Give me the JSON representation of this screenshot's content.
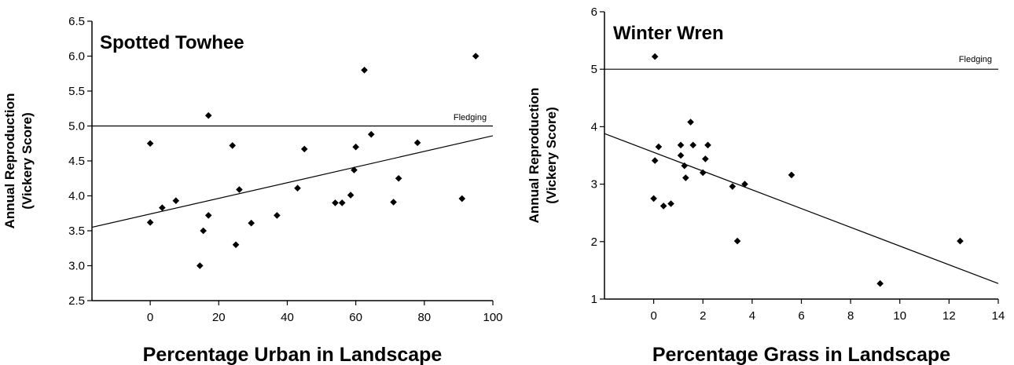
{
  "chart_data": [
    {
      "type": "scatter",
      "title": "Spotted Towhee",
      "xlabel": "Percentage Urban in Landscape",
      "ylabel": [
        "Annual Reproduction",
        "(Vickery Score)"
      ],
      "xlim": [
        -17,
        100
      ],
      "ylim": [
        2.5,
        6.5
      ],
      "xticks": [
        0,
        20,
        40,
        60,
        80,
        100
      ],
      "yticks": [
        "2.5",
        "3.0",
        "3.5",
        "4.0",
        "4.5",
        "5.0",
        "5.5",
        "6.0",
        "6.5"
      ],
      "x": [
        0,
        0,
        3.5,
        7.5,
        14.5,
        15.5,
        17,
        17,
        24,
        25,
        26,
        29.5,
        37,
        43,
        45,
        54,
        56,
        58.5,
        59.5,
        60,
        62.5,
        64.5,
        71,
        72.5,
        78,
        91,
        95
      ],
      "y": [
        4.75,
        3.62,
        3.83,
        3.93,
        3.0,
        3.5,
        5.15,
        3.72,
        4.72,
        3.3,
        4.09,
        3.61,
        3.72,
        4.11,
        4.67,
        3.9,
        3.9,
        4.01,
        4.37,
        4.7,
        5.8,
        4.88,
        3.91,
        4.25,
        4.76,
        3.96,
        6.0
      ],
      "reference_line": {
        "y": 5.0,
        "label": "Fledging"
      },
      "trend_line": {
        "x": [
          -17,
          100
        ],
        "y": [
          3.55,
          4.86
        ]
      },
      "marker_color": "#000000",
      "grid": false
    },
    {
      "type": "scatter",
      "title": "Winter Wren",
      "xlabel": "Percentage Grass in Landscape",
      "ylabel": [
        "Annual Reproduction",
        "(Vickery Score)"
      ],
      "xlim": [
        -2,
        14
      ],
      "ylim": [
        1,
        6
      ],
      "xticks": [
        0,
        2,
        4,
        6,
        8,
        10,
        12,
        14
      ],
      "yticks": [
        "1",
        "2",
        "3",
        "4",
        "5",
        "6"
      ],
      "x": [
        0.05,
        0.05,
        0,
        0.2,
        0.4,
        0.7,
        1.1,
        1.1,
        1.25,
        1.3,
        1.5,
        1.6,
        2.0,
        2.1,
        2.2,
        3.2,
        3.4,
        3.7,
        5.6,
        9.2,
        12.45
      ],
      "y": [
        5.22,
        3.41,
        2.75,
        3.65,
        2.62,
        2.66,
        3.68,
        3.5,
        3.32,
        3.11,
        4.08,
        3.68,
        3.2,
        3.44,
        3.68,
        2.96,
        2.01,
        3.0,
        3.16,
        1.27,
        2.01
      ],
      "reference_line": {
        "y": 5.0,
        "label": "Fledging"
      },
      "trend_line": {
        "x": [
          -2,
          14
        ],
        "y": [
          3.88,
          1.27
        ]
      },
      "marker_color": "#000000",
      "grid": false
    }
  ]
}
